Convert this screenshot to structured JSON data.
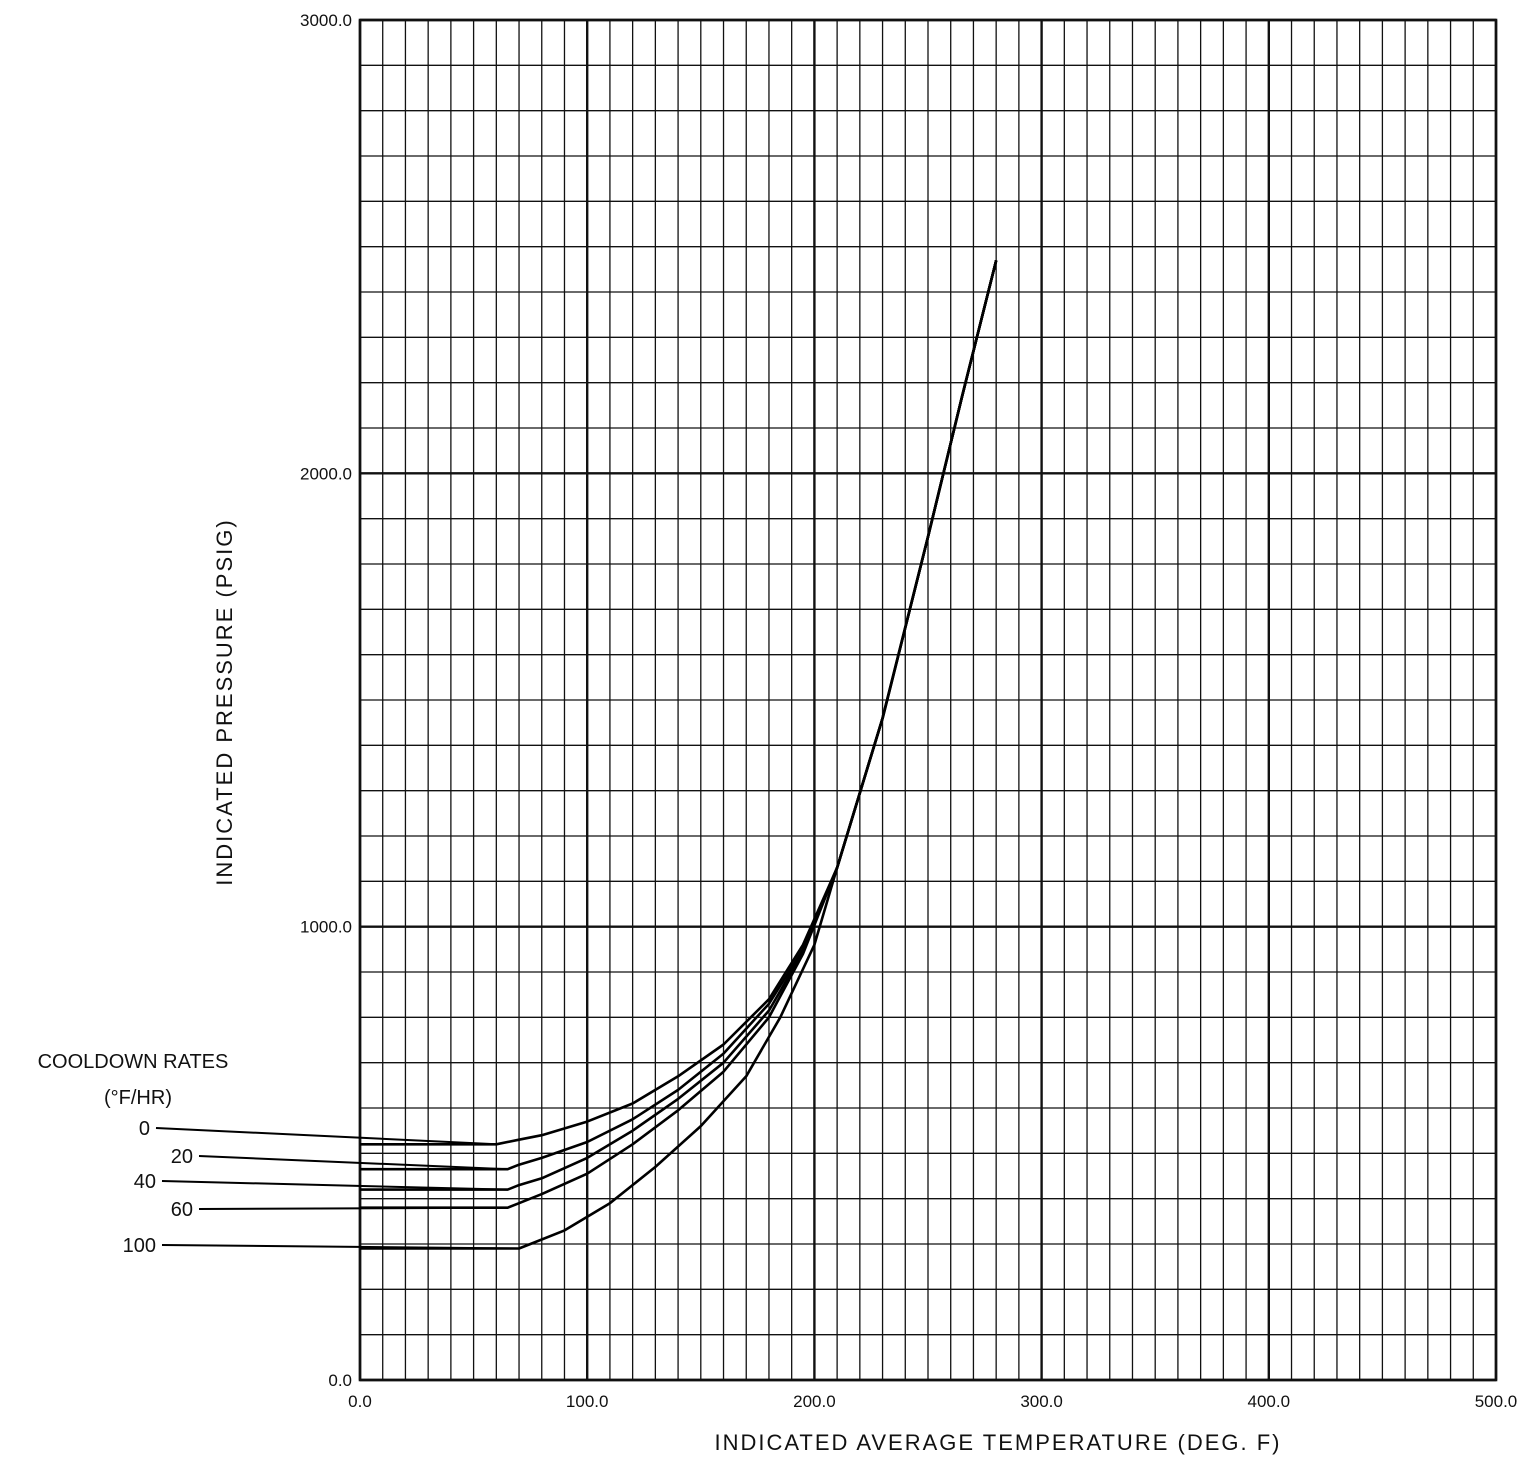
{
  "chart_data": {
    "type": "line",
    "xlabel": "INDICATED AVERAGE TEMPERATURE (DEG. F)",
    "ylabel": "INDICATED PRESSURE (PSIG)",
    "xlim": [
      0,
      500
    ],
    "ylim": [
      0,
      3000
    ],
    "x_ticks": [
      "0.0",
      "100.0",
      "200.0",
      "300.0",
      "400.0",
      "500.0"
    ],
    "y_ticks": [
      "0.0",
      "1000.0",
      "2000.0",
      "3000.0"
    ],
    "grid": true,
    "legend": {
      "title": "COOLDOWN RATES",
      "subtitle": "(°F/HR)",
      "placement": "left"
    },
    "series": [
      {
        "name": "0",
        "x": [
          0,
          60,
          70,
          80,
          100,
          120,
          140,
          160,
          180,
          195,
          210,
          230,
          250,
          265,
          280
        ],
        "y": [
          520,
          520,
          530,
          540,
          570,
          610,
          670,
          740,
          840,
          960,
          1130,
          1460,
          1860,
          2170,
          2470
        ]
      },
      {
        "name": "20",
        "x": [
          0,
          65,
          70,
          80,
          100,
          120,
          140,
          160,
          180,
          195,
          210,
          230,
          250,
          265,
          280
        ],
        "y": [
          465,
          465,
          475,
          490,
          525,
          575,
          640,
          720,
          830,
          950,
          1130,
          1460,
          1860,
          2170,
          2470
        ]
      },
      {
        "name": "40",
        "x": [
          0,
          65,
          70,
          80,
          100,
          120,
          140,
          160,
          180,
          195,
          210,
          230,
          250,
          265,
          280
        ],
        "y": [
          420,
          420,
          430,
          445,
          490,
          550,
          620,
          700,
          815,
          945,
          1130,
          1460,
          1860,
          2170,
          2470
        ]
      },
      {
        "name": "60",
        "x": [
          0,
          65,
          70,
          80,
          100,
          120,
          140,
          160,
          180,
          195,
          210,
          230,
          250,
          265,
          280
        ],
        "y": [
          380,
          380,
          390,
          410,
          455,
          520,
          595,
          680,
          800,
          940,
          1130,
          1460,
          1860,
          2170,
          2470
        ]
      },
      {
        "name": "100",
        "x": [
          0,
          70,
          75,
          90,
          110,
          130,
          150,
          170,
          185,
          200,
          210,
          230,
          250,
          265,
          280
        ],
        "y": [
          290,
          290,
          300,
          330,
          390,
          470,
          560,
          670,
          800,
          960,
          1130,
          1460,
          1860,
          2170,
          2470
        ]
      }
    ]
  }
}
